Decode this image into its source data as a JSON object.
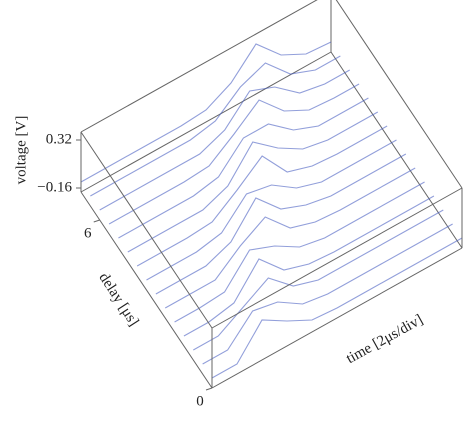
{
  "chart_data": {
    "type": "waterfall3d",
    "xlabel": "time [2μs/div]",
    "ylabel": "delay [μs]",
    "zlabel": "voltage [V]",
    "xlim": [
      0,
      10
    ],
    "ylim": [
      0,
      7
    ],
    "zlim": [
      -0.2,
      0.4
    ],
    "yticks": [
      0,
      6
    ],
    "zticks": [
      {
        "value": -0.16,
        "label": "−0.16"
      },
      0.32
    ],
    "color": "#4a5fc1",
    "x": [
      0,
      1,
      2,
      3,
      4,
      5,
      6,
      7,
      8,
      9,
      10
    ],
    "series": [
      {
        "delay": 0.0,
        "values": [
          -0.1,
          -0.1,
          0.2,
          0.05,
          -0.08,
          -0.1,
          -0.1,
          -0.1,
          -0.1,
          -0.1,
          -0.1
        ]
      },
      {
        "delay": 0.5,
        "values": [
          -0.1,
          -0.1,
          0.15,
          0.1,
          -0.06,
          -0.1,
          -0.1,
          -0.1,
          -0.1,
          -0.1,
          -0.1
        ]
      },
      {
        "delay": 1.0,
        "values": [
          -0.1,
          -0.1,
          0.05,
          0.2,
          -0.02,
          -0.1,
          -0.1,
          -0.1,
          -0.1,
          -0.1,
          -0.1
        ]
      },
      {
        "delay": 1.5,
        "values": [
          -0.1,
          -0.1,
          -0.05,
          0.25,
          0.0,
          -0.08,
          -0.1,
          -0.1,
          -0.1,
          -0.1,
          -0.1
        ]
      },
      {
        "delay": 2.0,
        "values": [
          -0.1,
          -0.1,
          -0.08,
          0.2,
          0.1,
          -0.05,
          -0.1,
          -0.1,
          -0.1,
          -0.1,
          -0.1
        ]
      },
      {
        "delay": 2.5,
        "values": [
          -0.1,
          -0.1,
          -0.1,
          0.1,
          0.25,
          0.0,
          -0.08,
          -0.1,
          -0.1,
          -0.1,
          -0.1
        ]
      },
      {
        "delay": 3.0,
        "values": [
          -0.1,
          -0.1,
          -0.1,
          0.0,
          0.3,
          0.05,
          -0.05,
          -0.1,
          -0.1,
          -0.1,
          -0.1
        ]
      },
      {
        "delay": 3.5,
        "values": [
          -0.1,
          -0.1,
          -0.1,
          -0.05,
          0.2,
          0.15,
          -0.02,
          -0.1,
          -0.1,
          -0.1,
          -0.1
        ]
      },
      {
        "delay": 4.0,
        "values": [
          -0.1,
          -0.1,
          -0.1,
          -0.08,
          0.1,
          0.3,
          0.0,
          -0.08,
          -0.1,
          -0.1,
          -0.1
        ]
      },
      {
        "delay": 4.5,
        "values": [
          -0.1,
          -0.1,
          -0.1,
          -0.1,
          0.0,
          0.3,
          0.1,
          -0.05,
          -0.1,
          -0.1,
          -0.1
        ]
      },
      {
        "delay": 5.0,
        "values": [
          -0.1,
          -0.1,
          -0.1,
          -0.1,
          -0.05,
          0.2,
          0.2,
          0.0,
          -0.1,
          -0.1,
          -0.1
        ]
      },
      {
        "delay": 5.5,
        "values": [
          -0.1,
          -0.1,
          -0.1,
          -0.1,
          -0.08,
          0.1,
          0.3,
          0.05,
          -0.08,
          -0.1,
          -0.1
        ]
      },
      {
        "delay": 6.0,
        "values": [
          -0.1,
          -0.1,
          -0.1,
          -0.1,
          -0.1,
          0.0,
          0.25,
          0.15,
          -0.05,
          -0.1,
          -0.1
        ]
      },
      {
        "delay": 6.5,
        "values": [
          -0.1,
          -0.1,
          -0.1,
          -0.1,
          -0.1,
          -0.05,
          0.15,
          0.25,
          0.0,
          -0.1,
          -0.1
        ]
      },
      {
        "delay": 7.0,
        "values": [
          -0.1,
          -0.1,
          -0.1,
          -0.1,
          -0.1,
          -0.08,
          0.05,
          0.3,
          0.05,
          -0.08,
          -0.1
        ]
      }
    ]
  }
}
